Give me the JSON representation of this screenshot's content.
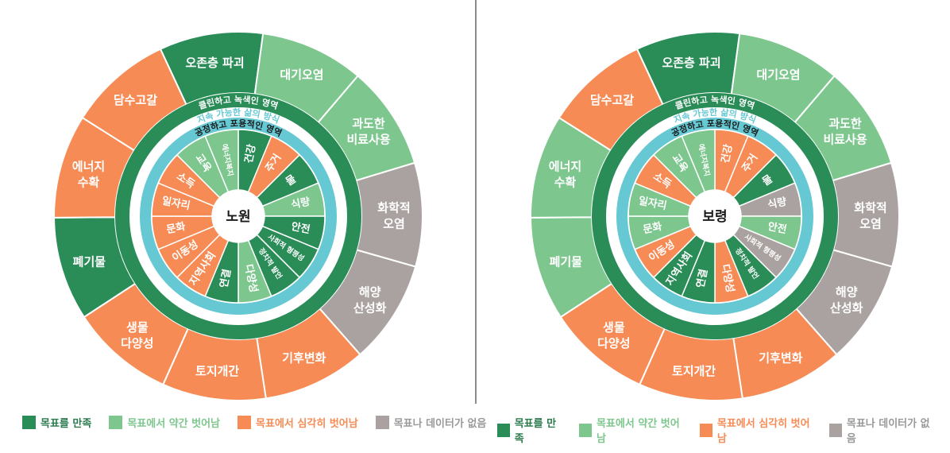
{
  "colors": {
    "met": "#2a8c57",
    "slightly_off": "#7dc78e",
    "seriously_off": "#f68b55",
    "no_data": "#aaa2a0",
    "cyan": "#66c8d3",
    "text_dark": "#1a1a1a"
  },
  "ring_labels": {
    "ecological": "클린하고 녹색인 영역",
    "sustainable": "지속 가능한 삶의 방식",
    "social": "공정하고 포용적인 영역"
  },
  "legend": [
    {
      "label": "목표를 만족",
      "status": "met"
    },
    {
      "label": "목표에서 약간 벗어남",
      "status": "slightly_off"
    },
    {
      "label": "목표에서 심각히 벗어남",
      "status": "seriously_off"
    },
    {
      "label": "목표나 데이터가 없음",
      "status": "no_data"
    }
  ],
  "donuts": [
    {
      "name": "노원",
      "outer": [
        {
          "lines": [
            "오존층 파괴"
          ],
          "status": "met"
        },
        {
          "lines": [
            "대기오염"
          ],
          "status": "slightly_off"
        },
        {
          "lines": [
            "과도한",
            "비료사용"
          ],
          "status": "slightly_off"
        },
        {
          "lines": [
            "화학적",
            "오염"
          ],
          "status": "no_data"
        },
        {
          "lines": [
            "해양",
            "산성화"
          ],
          "status": "no_data"
        },
        {
          "lines": [
            "기후변화"
          ],
          "status": "seriously_off"
        },
        {
          "lines": [
            "토지개간"
          ],
          "status": "seriously_off"
        },
        {
          "lines": [
            "생물",
            "다양성"
          ],
          "status": "seriously_off"
        },
        {
          "lines": [
            "폐기물"
          ],
          "status": "met"
        },
        {
          "lines": [
            "에너지",
            "수확"
          ],
          "status": "seriously_off"
        },
        {
          "lines": [
            "담수고갈"
          ],
          "status": "seriously_off"
        }
      ],
      "inner": [
        {
          "label": "건강",
          "status": "met"
        },
        {
          "label": "주거",
          "status": "seriously_off"
        },
        {
          "label": "물",
          "status": "met"
        },
        {
          "label": "식량",
          "status": "slightly_off"
        },
        {
          "label": "안전",
          "status": "met"
        },
        {
          "label": "사회적 형평성",
          "status": "met"
        },
        {
          "label": "정치적 발언",
          "status": "met"
        },
        {
          "label": "다양성",
          "status": "slightly_off"
        },
        {
          "label": "연결",
          "status": "met"
        },
        {
          "label": "지역사회",
          "status": "seriously_off"
        },
        {
          "label": "이동성",
          "status": "seriously_off"
        },
        {
          "label": "문화",
          "status": "seriously_off"
        },
        {
          "label": "일자리",
          "status": "seriously_off"
        },
        {
          "label": "소득",
          "status": "seriously_off"
        },
        {
          "label": "교육",
          "status": "slightly_off"
        },
        {
          "label": "에너지복지",
          "status": "slightly_off"
        }
      ]
    },
    {
      "name": "보령",
      "outer": [
        {
          "lines": [
            "오존층 파괴"
          ],
          "status": "met"
        },
        {
          "lines": [
            "대기오염"
          ],
          "status": "slightly_off"
        },
        {
          "lines": [
            "과도한",
            "비료사용"
          ],
          "status": "slightly_off"
        },
        {
          "lines": [
            "화학적",
            "오염"
          ],
          "status": "no_data"
        },
        {
          "lines": [
            "해양",
            "산성화"
          ],
          "status": "no_data"
        },
        {
          "lines": [
            "기후변화"
          ],
          "status": "seriously_off"
        },
        {
          "lines": [
            "토지개간"
          ],
          "status": "seriously_off"
        },
        {
          "lines": [
            "생물",
            "다양성"
          ],
          "status": "seriously_off"
        },
        {
          "lines": [
            "폐기물"
          ],
          "status": "slightly_off"
        },
        {
          "lines": [
            "에너지",
            "수확"
          ],
          "status": "slightly_off"
        },
        {
          "lines": [
            "담수고갈"
          ],
          "status": "seriously_off"
        }
      ],
      "inner": [
        {
          "label": "건강",
          "status": "seriously_off"
        },
        {
          "label": "주거",
          "status": "seriously_off"
        },
        {
          "label": "물",
          "status": "met"
        },
        {
          "label": "식량",
          "status": "no_data"
        },
        {
          "label": "안전",
          "status": "slightly_off"
        },
        {
          "label": "사회적 형평성",
          "status": "no_data"
        },
        {
          "label": "정치적 발언",
          "status": "met"
        },
        {
          "label": "다양성",
          "status": "seriously_off"
        },
        {
          "label": "연결",
          "status": "met"
        },
        {
          "label": "지역사회",
          "status": "met"
        },
        {
          "label": "이동성",
          "status": "seriously_off"
        },
        {
          "label": "문화",
          "status": "slightly_off"
        },
        {
          "label": "일자리",
          "status": "slightly_off"
        },
        {
          "label": "소득",
          "status": "seriously_off"
        },
        {
          "label": "교육",
          "status": "slightly_off"
        },
        {
          "label": "에너지복지",
          "status": "slightly_off"
        }
      ]
    }
  ]
}
